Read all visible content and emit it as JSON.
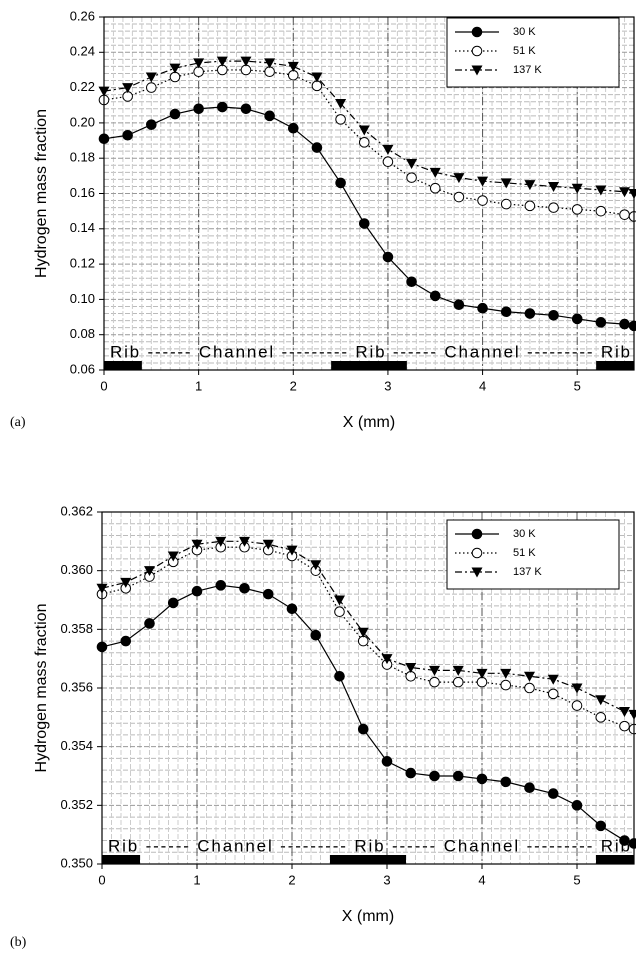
{
  "chart_data": [
    {
      "type": "line",
      "panel_label": "(a)",
      "x_label": "X (mm)",
      "y_label": "Hydrogen mass fraction",
      "annotation": "Rib ------ Channel --------- Rib ------ Channel --------- Rib",
      "rib_spans": [
        [
          0,
          0.4
        ],
        [
          2.4,
          3.2
        ],
        [
          5.2,
          5.6
        ]
      ],
      "x": [
        0,
        0.25,
        0.5,
        0.75,
        1,
        1.25,
        1.5,
        1.75,
        2,
        2.25,
        2.5,
        2.75,
        3,
        3.25,
        3.5,
        3.75,
        4,
        4.25,
        4.5,
        4.75,
        5,
        5.25,
        5.5,
        5.6
      ],
      "series": [
        {
          "name": "30 K",
          "color": "#000000",
          "marker": "filled-circle",
          "dash": "solid",
          "values": [
            0.191,
            0.193,
            0.199,
            0.205,
            0.208,
            0.209,
            0.208,
            0.204,
            0.197,
            0.186,
            0.166,
            0.143,
            0.124,
            0.11,
            0.102,
            0.097,
            0.095,
            0.093,
            0.092,
            0.091,
            0.089,
            0.087,
            0.086,
            0.085
          ]
        },
        {
          "name": "51 K",
          "color": "#000000",
          "marker": "open-circle",
          "dash": "dotted",
          "values": [
            0.213,
            0.215,
            0.22,
            0.226,
            0.229,
            0.23,
            0.23,
            0.229,
            0.227,
            0.221,
            0.202,
            0.189,
            0.178,
            0.169,
            0.163,
            0.158,
            0.156,
            0.154,
            0.153,
            0.152,
            0.151,
            0.15,
            0.148,
            0.147
          ]
        },
        {
          "name": "137 K",
          "color": "#000000",
          "marker": "filled-triangle-down",
          "dash": "dash-dot",
          "values": [
            0.218,
            0.22,
            0.226,
            0.231,
            0.234,
            0.235,
            0.235,
            0.234,
            0.232,
            0.226,
            0.211,
            0.196,
            0.185,
            0.177,
            0.172,
            0.169,
            0.167,
            0.166,
            0.165,
            0.164,
            0.163,
            0.162,
            0.161,
            0.16
          ]
        }
      ],
      "xlim": [
        0,
        5.6
      ],
      "xticks": [
        0,
        1,
        2,
        3,
        4,
        5
      ],
      "ylim": [
        0.06,
        0.26
      ],
      "yticks": [
        0.06,
        0.08,
        {
          "value": 0.1,
          "label": "0.10"
        },
        0.12,
        0.14,
        0.16,
        0.18,
        {
          "value": 0.2,
          "label": "0.20"
        },
        0.22,
        0.24,
        0.26
      ],
      "grid": true,
      "legend": "upper right"
    },
    {
      "type": "line",
      "panel_label": "(b)",
      "x_label": "X (mm)",
      "y_label": "Hydrogen mass fraction",
      "annotation": "Rib ------ Channel --------- Rib ------ Channel --------- Rib",
      "rib_spans": [
        [
          0,
          0.4
        ],
        [
          2.4,
          3.2
        ],
        [
          5.2,
          5.6
        ]
      ],
      "x": [
        0,
        0.25,
        0.5,
        0.75,
        1,
        1.25,
        1.5,
        1.75,
        2,
        2.25,
        2.5,
        2.75,
        3,
        3.25,
        3.5,
        3.75,
        4,
        4.25,
        4.5,
        4.75,
        5,
        5.25,
        5.5,
        5.6
      ],
      "series": [
        {
          "name": "30 K",
          "color": "#000000",
          "marker": "filled-circle",
          "dash": "solid",
          "values": [
            0.3574,
            0.3576,
            0.3582,
            0.3589,
            0.3593,
            0.3595,
            0.3594,
            0.3592,
            0.3587,
            0.3578,
            0.3564,
            0.3546,
            0.3535,
            0.3531,
            0.353,
            0.353,
            0.3529,
            0.3528,
            0.3526,
            0.3524,
            0.352,
            0.3513,
            0.3508,
            0.3507
          ]
        },
        {
          "name": "51 K",
          "color": "#000000",
          "marker": "open-circle",
          "dash": "dotted",
          "values": [
            0.3592,
            0.3594,
            0.3598,
            0.3603,
            0.3607,
            0.3608,
            0.3608,
            0.3607,
            0.3605,
            0.36,
            0.3586,
            0.3576,
            0.3568,
            0.3564,
            0.3562,
            0.3562,
            0.3562,
            0.3561,
            0.356,
            0.3558,
            0.3554,
            0.355,
            0.3547,
            0.3546
          ]
        },
        {
          "name": "137 K",
          "color": "#000000",
          "marker": "filled-triangle-down",
          "dash": "dash-dot",
          "values": [
            0.3594,
            0.3596,
            0.36,
            0.3605,
            0.3609,
            0.361,
            0.361,
            0.3609,
            0.3607,
            0.3602,
            0.359,
            0.3579,
            0.357,
            0.3567,
            0.3566,
            0.3566,
            0.3565,
            0.3565,
            0.3564,
            0.3563,
            0.356,
            0.3556,
            0.3552,
            0.3551
          ]
        }
      ],
      "xlim": [
        0,
        5.6
      ],
      "xticks": [
        0,
        1,
        2,
        3,
        4,
        5
      ],
      "ylim": [
        0.35,
        0.362
      ],
      "yticks": [
        {
          "value": 0.35,
          "label": "0.350"
        },
        0.352,
        0.354,
        0.356,
        0.358,
        {
          "value": 0.36,
          "label": "0.360"
        },
        0.362
      ],
      "grid": true,
      "legend": "upper right"
    }
  ]
}
